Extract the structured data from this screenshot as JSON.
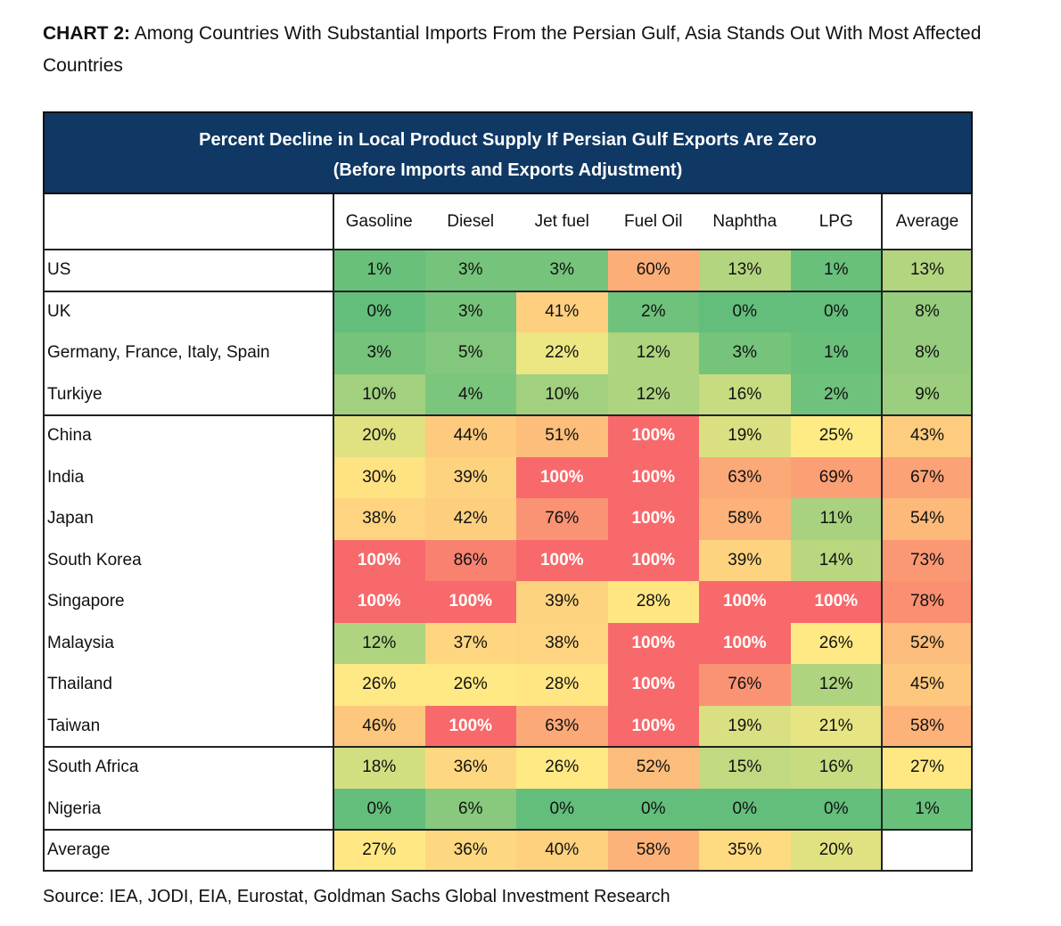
{
  "title": {
    "lead": "CHART 2:",
    "text": "Among Countries With Substantial Imports From the Persian Gulf, Asia Stands Out With Most Affected Countries"
  },
  "source": "Source: IEA, JODI, EIA, Eurostat, Goldman Sachs Global Investment Research",
  "chart_data": {
    "type": "heatmap",
    "title_line1": "Percent Decline in Local Product Supply If Persian Gulf Exports Are Zero",
    "title_line2": "(Before Imports and Exports Adjustment)",
    "columns": [
      "Gasoline",
      "Diesel",
      "Jet fuel",
      "Fuel Oil",
      "Naphtha",
      "LPG",
      "Average"
    ],
    "unit": "%",
    "rows": [
      {
        "label": "US",
        "group": 0,
        "values": [
          1,
          3,
          3,
          60,
          13,
          1,
          13
        ]
      },
      {
        "label": "UK",
        "group": 1,
        "values": [
          0,
          3,
          41,
          2,
          0,
          0,
          8
        ]
      },
      {
        "label": "Germany, France, Italy, Spain",
        "group": 1,
        "values": [
          3,
          5,
          22,
          12,
          3,
          1,
          8
        ]
      },
      {
        "label": "Turkiye",
        "group": 1,
        "values": [
          10,
          4,
          10,
          12,
          16,
          2,
          9
        ]
      },
      {
        "label": "China",
        "group": 2,
        "values": [
          20,
          44,
          51,
          100,
          19,
          25,
          43
        ]
      },
      {
        "label": "India",
        "group": 2,
        "values": [
          30,
          39,
          100,
          100,
          63,
          69,
          67
        ]
      },
      {
        "label": "Japan",
        "group": 2,
        "values": [
          38,
          42,
          76,
          100,
          58,
          11,
          54
        ]
      },
      {
        "label": "South Korea",
        "group": 2,
        "values": [
          100,
          86,
          100,
          100,
          39,
          14,
          73
        ]
      },
      {
        "label": "Singapore",
        "group": 2,
        "values": [
          100,
          100,
          39,
          28,
          100,
          100,
          78
        ]
      },
      {
        "label": "Malaysia",
        "group": 2,
        "values": [
          12,
          37,
          38,
          100,
          100,
          26,
          52
        ]
      },
      {
        "label": "Thailand",
        "group": 2,
        "values": [
          26,
          26,
          28,
          100,
          76,
          12,
          45
        ]
      },
      {
        "label": "Taiwan",
        "group": 2,
        "values": [
          46,
          100,
          63,
          100,
          19,
          21,
          58
        ]
      },
      {
        "label": "South Africa",
        "group": 3,
        "values": [
          18,
          36,
          26,
          52,
          15,
          16,
          27
        ]
      },
      {
        "label": "Nigeria",
        "group": 3,
        "values": [
          0,
          6,
          0,
          0,
          0,
          0,
          1
        ]
      },
      {
        "label": "Average",
        "group": 4,
        "values": [
          27,
          36,
          40,
          58,
          35,
          20,
          null
        ]
      }
    ],
    "color_scale": {
      "low": "#63be7b",
      "mid": "#ffeb84",
      "high": "#f8696b"
    }
  }
}
